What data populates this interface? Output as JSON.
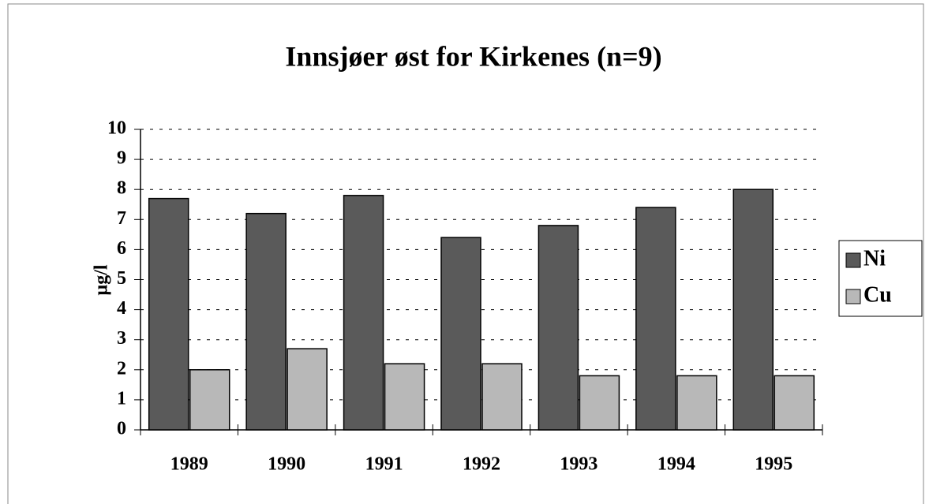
{
  "chart_data": {
    "type": "bar",
    "title": "Innsjøer øst for Kirkenes (n=9)",
    "ylabel": "µg/l",
    "categories": [
      "1989",
      "1990",
      "1991",
      "1992",
      "1993",
      "1994",
      "1995"
    ],
    "series": [
      {
        "name": "Ni",
        "color": "#5a5a5a",
        "values": [
          7.7,
          7.2,
          7.8,
          6.4,
          6.8,
          7.4,
          8.0
        ]
      },
      {
        "name": "Cu",
        "color": "#b8b8b8",
        "values": [
          2.0,
          2.7,
          2.2,
          2.2,
          1.8,
          1.8,
          1.8
        ]
      }
    ],
    "ylim": [
      0,
      10
    ],
    "yticks": [
      0,
      1,
      2,
      3,
      4,
      5,
      6,
      7,
      8,
      9,
      10
    ],
    "grid": true,
    "legend": "right"
  }
}
